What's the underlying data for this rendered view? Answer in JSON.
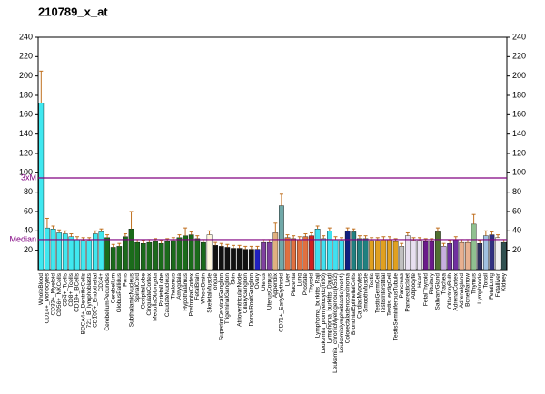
{
  "chart_data": {
    "type": "bar",
    "title": "210789_x_at",
    "categories": [
      "WholeBlood",
      "CD14+_Monocytes",
      "CD33+_Myeloid",
      "CD56+_NKCells",
      "CD4+_Tcells",
      "CD8+_Tcells",
      "CD19+_BCells",
      "BDCA4+_DentriticCells",
      "721_B_lymphoblasts",
      "CD105+_Endothelial",
      "CD34+",
      "CerebellumPeduncles",
      "Cerebellum",
      "GlobusPallidus",
      "Pons",
      "SubthalamicNucleus",
      "SpinalCord",
      "OccipitalLobe",
      "CingulateCortex",
      "MedullaOblongata",
      "ParietalLobe",
      "CaudateNucleus",
      "Thalamus",
      "Amygdala",
      "Hypothalamus",
      "PrefrontalCortex",
      "FetalBrain",
      "WholeBrain",
      "SkeletalMuscle",
      "Tongue",
      "SuperiorCervicalGanglion",
      "TrigeminalGanglion",
      "Skin",
      "AtrioventricularNode",
      "CiliaryGanglion",
      "DorsalRootGanglion",
      "Ovary",
      "Uterus",
      "UterusCorpus",
      "Appendix",
      "CD71+_EarlyErythroid",
      "Liver",
      "Placenta",
      "Lung",
      "Prostate",
      "Thyroid",
      "Lymphoma_burkitts_Raji",
      "Leukemia_promyelocytic(hl60)",
      "Lymphoma_burkitts_Daudi",
      "Leukemia_chronicMyelogenous(k562)",
      "Leukemialymphoblastic(molt4)",
      "Colorectaladenocarcinoma",
      "BronchialEpithelialCells",
      "CardiacMyocytes",
      "SmoothMuscle",
      "Testis",
      "TestisGermCell",
      "TestisInterstitial",
      "TestisLeydigCell",
      "TestisSeminiferousTubule",
      "Pancreas",
      "PancreaticIslet",
      "Adipocyte",
      "Heart",
      "FetalThyroid",
      "Pituitary",
      "SalivaryGland",
      "Trachea",
      "OlfactoryBulb",
      "AdrenalCortex",
      "Adrenalgland",
      "BoneMarrow",
      "Thymus",
      "Lymphnode",
      "Tonsil",
      "FetalLung",
      "Fetalliver",
      "Kidney"
    ],
    "values": [
      172,
      43,
      42,
      38,
      37,
      34,
      31,
      30,
      30,
      37,
      39,
      33,
      23,
      24,
      34,
      42,
      28,
      27,
      28,
      29,
      27,
      29,
      30,
      33,
      35,
      36,
      32,
      28,
      36,
      25,
      24,
      23,
      22,
      22,
      21,
      21,
      21,
      28,
      28,
      38,
      66,
      33,
      32,
      31,
      34,
      35,
      42,
      32,
      40,
      31,
      30,
      40,
      39,
      32,
      32,
      30,
      30,
      31,
      31,
      29,
      24,
      35,
      30,
      30,
      29,
      29,
      39,
      24,
      27,
      31,
      28,
      28,
      47,
      27,
      35,
      36,
      33,
      28
    ],
    "errors": [
      33,
      10,
      3,
      3,
      3,
      3,
      3,
      3,
      3,
      3,
      3,
      3,
      3,
      3,
      3,
      18,
      3,
      3,
      3,
      3,
      3,
      3,
      3,
      3,
      8,
      3,
      3,
      3,
      4,
      3,
      3,
      3,
      3,
      3,
      3,
      3,
      3,
      3,
      3,
      10,
      12,
      3,
      3,
      3,
      3,
      3,
      3,
      3,
      3,
      3,
      3,
      3,
      3,
      3,
      3,
      3,
      3,
      3,
      3,
      3,
      3,
      3,
      3,
      3,
      3,
      3,
      4,
      3,
      3,
      3,
      3,
      3,
      10,
      3,
      5,
      3,
      3,
      3
    ],
    "colors": [
      "#40e8f0",
      "#40e8f0",
      "#40e8f0",
      "#40e8f0",
      "#40e8f0",
      "#40e8f0",
      "#40e8f0",
      "#40e8f0",
      "#40e8f0",
      "#40e8f0",
      "#40e8f0",
      "#1a6b1a",
      "#1a6b1a",
      "#1a6b1a",
      "#1a6b1a",
      "#1a6b1a",
      "#1a6b1a",
      "#1a6b1a",
      "#1a6b1a",
      "#1a6b1a",
      "#1a6b1a",
      "#1a6b1a",
      "#1a6b1a",
      "#1a6b1a",
      "#1a6b1a",
      "#1a6b1a",
      "#1a6b1a",
      "#1a6b1a",
      "#fff8e0",
      "#111111",
      "#111111",
      "#111111",
      "#111111",
      "#111111",
      "#111111",
      "#111111",
      "#2020c0",
      "#8040a0",
      "#8040a0",
      "#e0b080",
      "#70a8a8",
      "#e07040",
      "#e07040",
      "#e07040",
      "#e07040",
      "#d02020",
      "#40e0f0",
      "#40e0f0",
      "#40e0f0",
      "#40e0f0",
      "#40e0f0",
      "#102080",
      "#208080",
      "#208080",
      "#208080",
      "#e0a020",
      "#e0a020",
      "#e0a020",
      "#e0a020",
      "#e0a020",
      "#c0c0c0",
      "#e8e0f0",
      "#e8e0f0",
      "#e8e0f0",
      "#6a1a8a",
      "#6a1a8a",
      "#507030",
      "#c8b0e0",
      "#7030a0",
      "#7030a0",
      "#e8b090",
      "#e8b090",
      "#90c090",
      "#303060",
      "#a0c0e0",
      "#303080",
      "#f0f0f0",
      "#305050"
    ],
    "ylim": [
      0,
      240
    ],
    "yticks": [
      20,
      40,
      60,
      80,
      100,
      120,
      140,
      160,
      180,
      200,
      220,
      240
    ],
    "y2lim": [
      0,
      240
    ],
    "y2ticks": [
      20,
      40,
      60,
      80,
      100,
      120,
      140,
      160,
      180,
      200,
      220,
      240
    ],
    "reference_lines": [
      {
        "label": "3xM",
        "value": 94.7
      },
      {
        "label": "Median",
        "value": 31
      }
    ],
    "reference_color": "#800080",
    "error_color": "#c07020"
  }
}
